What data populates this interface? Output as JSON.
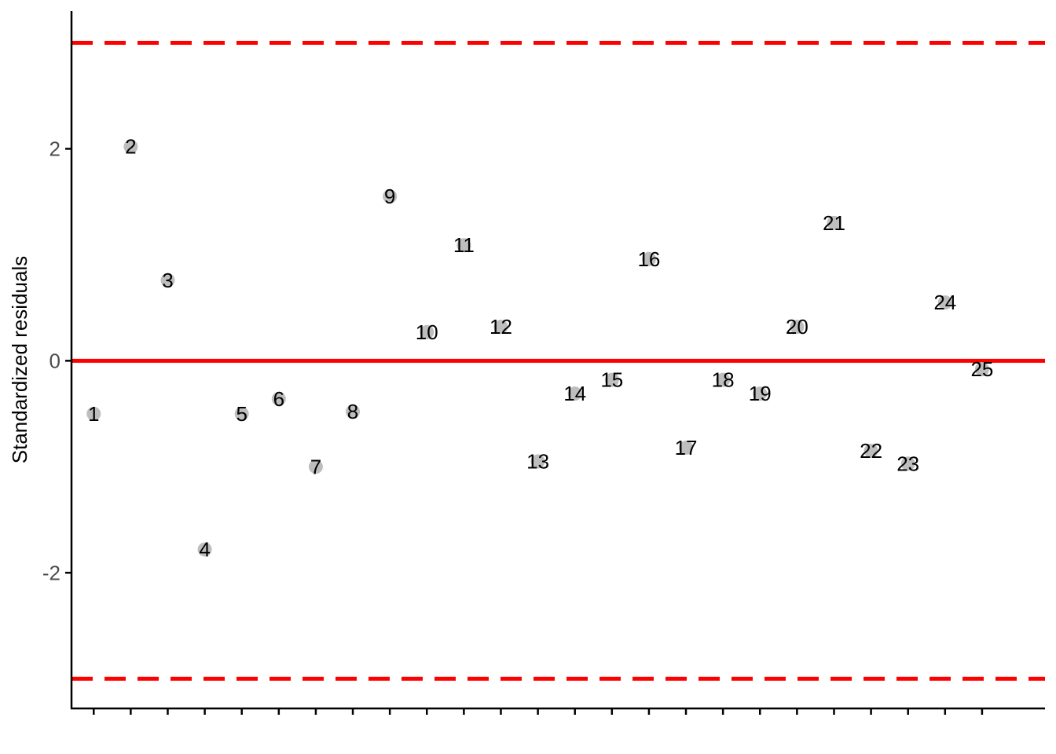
{
  "chart_data": {
    "type": "scatter",
    "title": "",
    "xlabel": "",
    "ylabel": "Standardized residuals",
    "ylim": [
      -3.28,
      3.3
    ],
    "xlim": [
      0.4,
      26.7
    ],
    "y_ticks": [
      2,
      0,
      -2
    ],
    "y_tick_labels": [
      "2",
      "0",
      "-2"
    ],
    "x_ticks": [
      1,
      2,
      3,
      4,
      5,
      6,
      7,
      8,
      9,
      10,
      11,
      12,
      13,
      14,
      15,
      16,
      17,
      18,
      19,
      20,
      21,
      22,
      23,
      24,
      25
    ],
    "grid": false,
    "legend": "none",
    "points": [
      {
        "x": 1,
        "y": -0.5,
        "label": "1"
      },
      {
        "x": 2,
        "y": 2.02,
        "label": "2"
      },
      {
        "x": 3,
        "y": 0.76,
        "label": "3"
      },
      {
        "x": 4,
        "y": -1.78,
        "label": "4"
      },
      {
        "x": 5,
        "y": -0.5,
        "label": "5"
      },
      {
        "x": 6,
        "y": -0.36,
        "label": "6"
      },
      {
        "x": 7,
        "y": -1.0,
        "label": "7"
      },
      {
        "x": 8,
        "y": -0.48,
        "label": "8"
      },
      {
        "x": 9,
        "y": 1.55,
        "label": "9"
      },
      {
        "x": 10,
        "y": 0.27,
        "label": "10"
      },
      {
        "x": 11,
        "y": 1.09,
        "label": "11"
      },
      {
        "x": 12,
        "y": 0.32,
        "label": "12"
      },
      {
        "x": 13,
        "y": -0.95,
        "label": "13"
      },
      {
        "x": 14,
        "y": -0.31,
        "label": "14"
      },
      {
        "x": 15,
        "y": -0.18,
        "label": "15"
      },
      {
        "x": 16,
        "y": 0.96,
        "label": "16"
      },
      {
        "x": 17,
        "y": -0.82,
        "label": "17"
      },
      {
        "x": 18,
        "y": -0.18,
        "label": "18"
      },
      {
        "x": 19,
        "y": -0.31,
        "label": "19"
      },
      {
        "x": 20,
        "y": 0.32,
        "label": "20"
      },
      {
        "x": 21,
        "y": 1.3,
        "label": "21"
      },
      {
        "x": 22,
        "y": -0.85,
        "label": "22"
      },
      {
        "x": 23,
        "y": -0.97,
        "label": "23"
      },
      {
        "x": 24,
        "y": 0.55,
        "label": "24"
      },
      {
        "x": 25,
        "y": -0.08,
        "label": "25"
      }
    ],
    "reference_lines": [
      {
        "y": 3,
        "style": "dashed",
        "color": "#ff0000"
      },
      {
        "y": 0,
        "style": "solid",
        "color": "#ff0000"
      },
      {
        "y": -3,
        "style": "dashed",
        "color": "#ff0000"
      }
    ],
    "point_color": "#bebebe",
    "label_color": "#000000",
    "axis_color": "#000000"
  }
}
